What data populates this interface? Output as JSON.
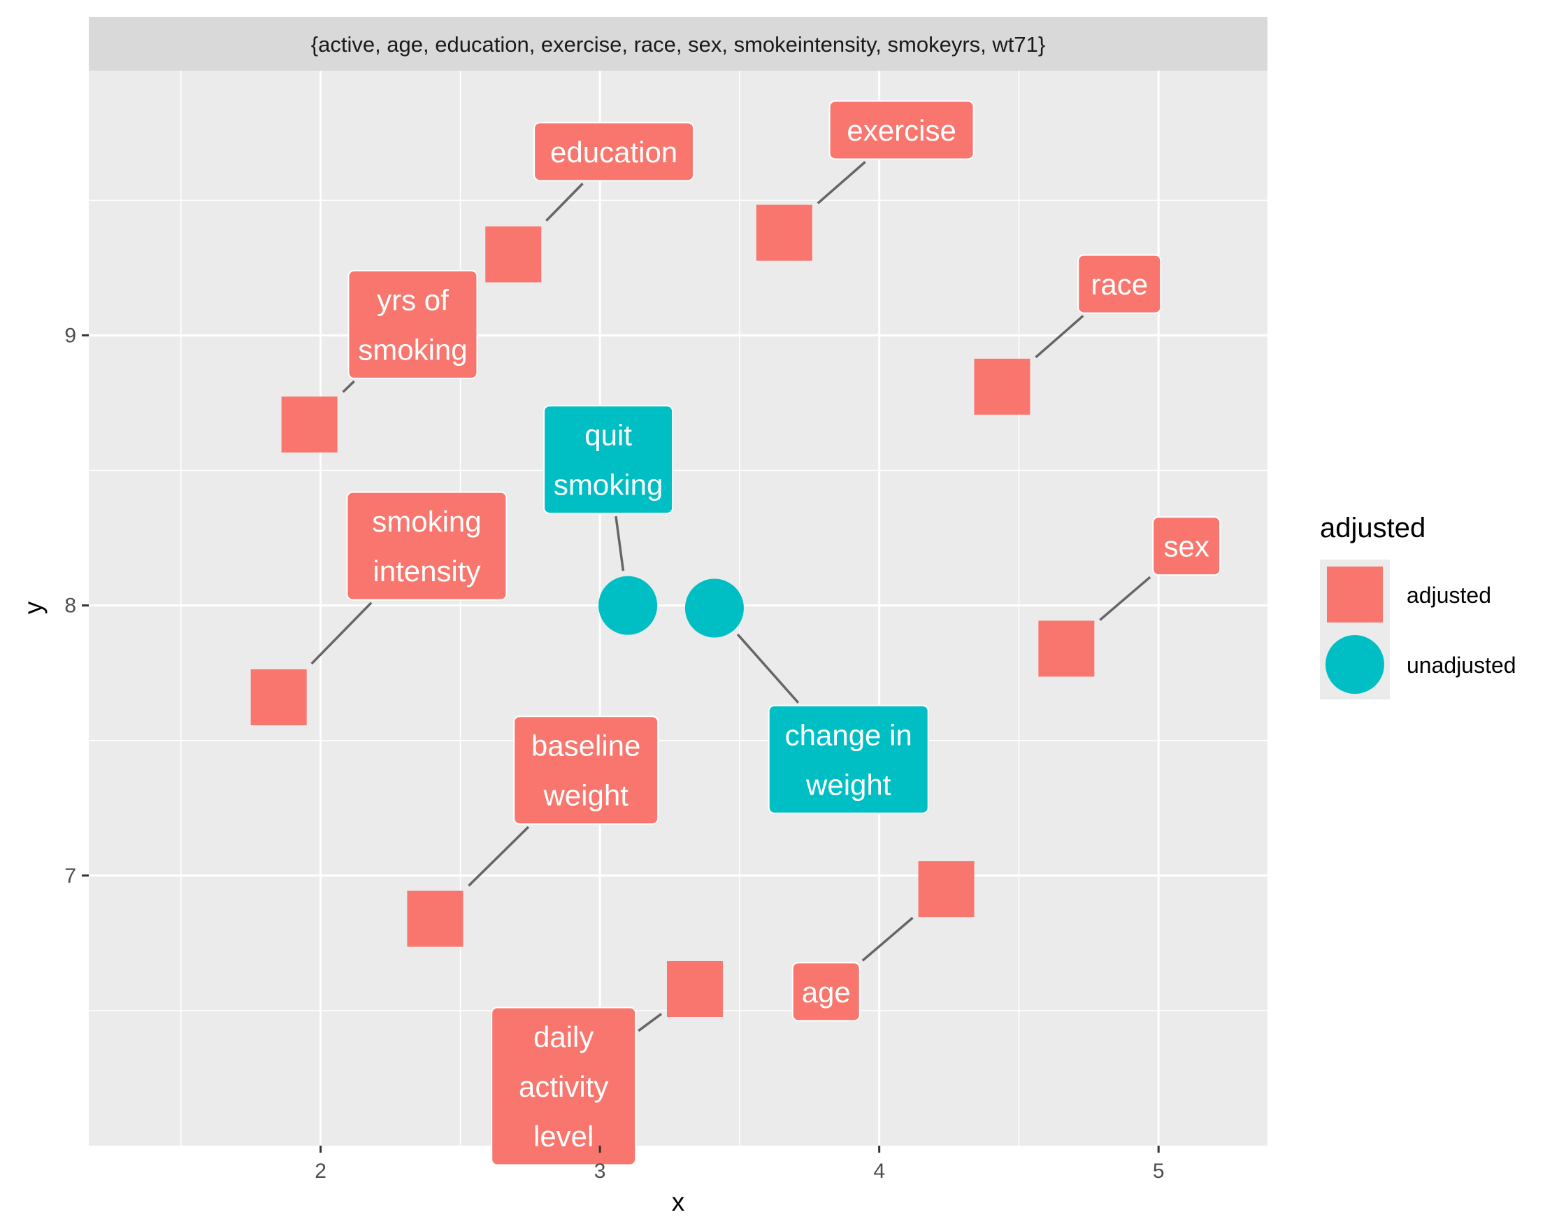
{
  "chart_data": {
    "type": "scatter",
    "facet_title": "{active, age, education, exercise, race, sex, smokeintensity, smokeyrs, wt71}",
    "xlabel": "x",
    "ylabel": "y",
    "xlim": [
      1.17,
      5.39
    ],
    "ylim": [
      6.0,
      9.98
    ],
    "x_ticks": [
      2,
      3,
      4,
      5
    ],
    "x_tick_labels": [
      "2",
      "3",
      "4",
      "5"
    ],
    "y_ticks": [
      7,
      8,
      9
    ],
    "y_tick_labels": [
      "7",
      "8",
      "9"
    ],
    "grid": true,
    "legend": {
      "title": "adjusted",
      "position": "right",
      "entries": [
        {
          "label": "adjusted",
          "shape": "square",
          "color": "#F8766D"
        },
        {
          "label": "unadjusted",
          "shape": "circle",
          "color": "#00BFC4"
        }
      ]
    },
    "colors": {
      "adjusted": "#F8766D",
      "unadjusted": "#00BFC4",
      "panel": "#EBEBEB",
      "strip": "#D9D9D9",
      "grid": "#FFFFFF",
      "segment": "#666666"
    },
    "points": [
      {
        "label": "education",
        "x": 2.69,
        "y": 9.3,
        "group": "adjusted",
        "label_x": 3.05,
        "label_y": 9.68
      },
      {
        "label": "exercise",
        "x": 3.66,
        "y": 9.38,
        "group": "adjusted",
        "label_x": 4.08,
        "label_y": 9.76
      },
      {
        "label": "race",
        "x": 4.44,
        "y": 8.81,
        "group": "adjusted",
        "label_x": 4.86,
        "label_y": 9.19
      },
      {
        "label": "yrs of\nsmoking",
        "x": 1.96,
        "y": 8.67,
        "group": "adjusted",
        "label_x": 2.33,
        "label_y": 9.04
      },
      {
        "label": "quit\nsmoking",
        "x": 3.1,
        "y": 8.0,
        "group": "unadjusted",
        "label_x": 3.03,
        "label_y": 8.54
      },
      {
        "label": "smoking\nintensity",
        "x": 1.85,
        "y": 7.66,
        "group": "adjusted",
        "label_x": 2.38,
        "label_y": 8.22
      },
      {
        "label": "sex",
        "x": 4.67,
        "y": 7.84,
        "group": "adjusted",
        "label_x": 5.1,
        "label_y": 8.22
      },
      {
        "label": "change in\nweight",
        "x": 3.41,
        "y": 7.99,
        "group": "unadjusted",
        "label_x": 3.89,
        "label_y": 7.43
      },
      {
        "label": "baseline\nweight",
        "x": 2.41,
        "y": 6.84,
        "group": "adjusted",
        "label_x": 2.95,
        "label_y": 7.39
      },
      {
        "label": "age",
        "x": 4.24,
        "y": 6.95,
        "group": "adjusted",
        "label_x": 3.81,
        "label_y": 6.57
      },
      {
        "label": "daily\nactivity\nlevel",
        "x": 3.34,
        "y": 6.58,
        "group": "adjusted",
        "label_x": 2.87,
        "label_y": 6.22
      }
    ]
  }
}
